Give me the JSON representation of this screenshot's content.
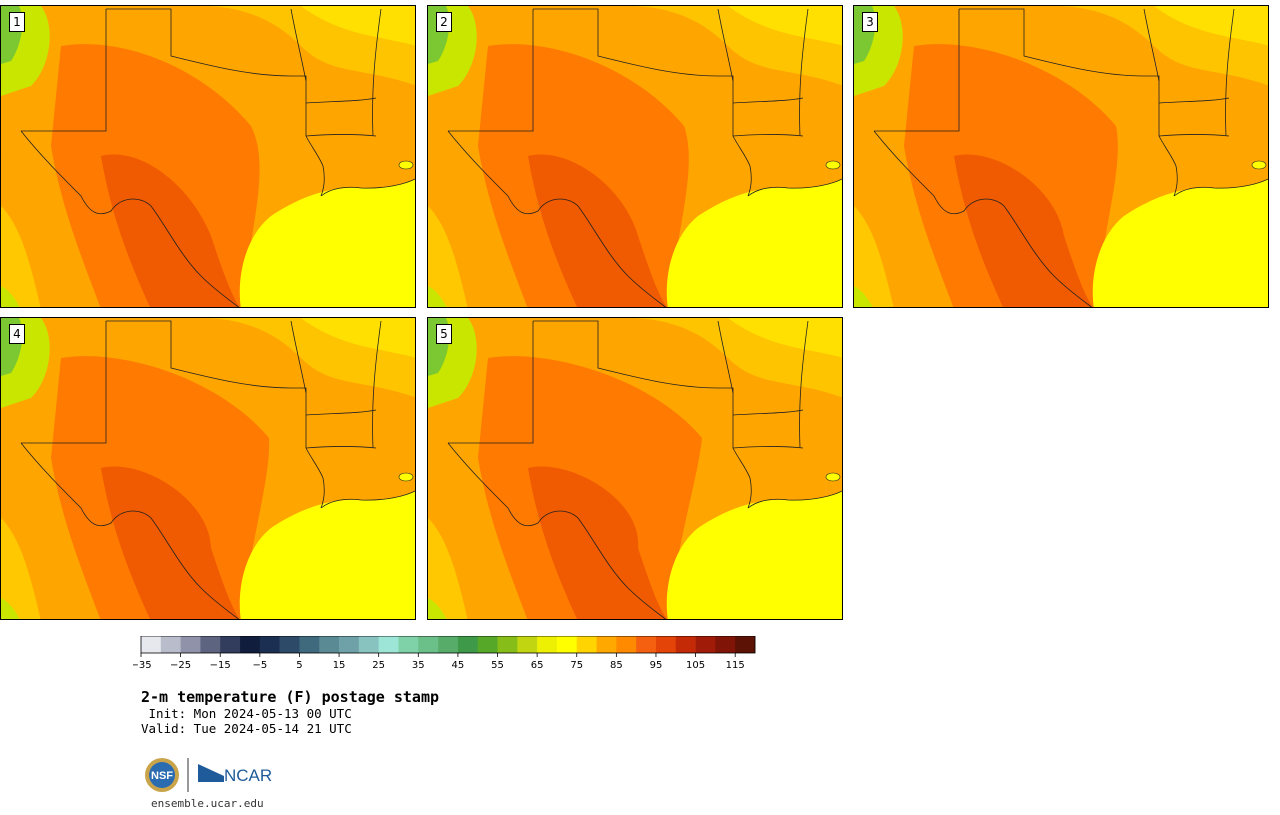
{
  "panels": [
    {
      "label": "1",
      "variant": 0
    },
    {
      "label": "2",
      "variant": 1
    },
    {
      "label": "3",
      "variant": 2
    },
    {
      "label": "4",
      "variant": 3
    },
    {
      "label": "5",
      "variant": 4
    }
  ],
  "colorbar": {
    "colors": [
      "#e6e8ee",
      "#b9bccb",
      "#8f92a8",
      "#5d6480",
      "#323c5c",
      "#101d3c",
      "#1b2f52",
      "#2d4a68",
      "#3f6a7e",
      "#5a8a94",
      "#6fa2a8",
      "#88c3c0",
      "#9de5d6",
      "#7fd2a8",
      "#6bbf88",
      "#58ac6a",
      "#3e9a48",
      "#56a828",
      "#86bd18",
      "#c1d510",
      "#eef004",
      "#ffff00",
      "#ffd400",
      "#ffa800",
      "#ff8a00",
      "#f56010",
      "#e44408",
      "#c42a06",
      "#a01c08",
      "#801406",
      "#5c1204"
    ],
    "ticks": [
      "−35",
      "−25",
      "−15",
      "−5",
      "5",
      "15",
      "25",
      "35",
      "45",
      "55",
      "65",
      "75",
      "85",
      "95",
      "105",
      "115"
    ]
  },
  "title": "2-m temperature (F) postage stamp",
  "init": " Init: Mon 2024-05-13 00 UTC",
  "valid": "Valid: Tue 2024-05-14 21 UTC",
  "logos": {
    "nsf": "NSF",
    "ncar": "NCAR"
  },
  "site": "ensemble.ucar.edu",
  "map_colors": {
    "gulf": "#ffff00",
    "hot": "#ff7a00",
    "hotter": "#f05a00",
    "warm": "#ffa500",
    "mild": "#ffc800",
    "cool": "#c8e600",
    "cold": "#7bc832",
    "boundary": "#222222"
  }
}
